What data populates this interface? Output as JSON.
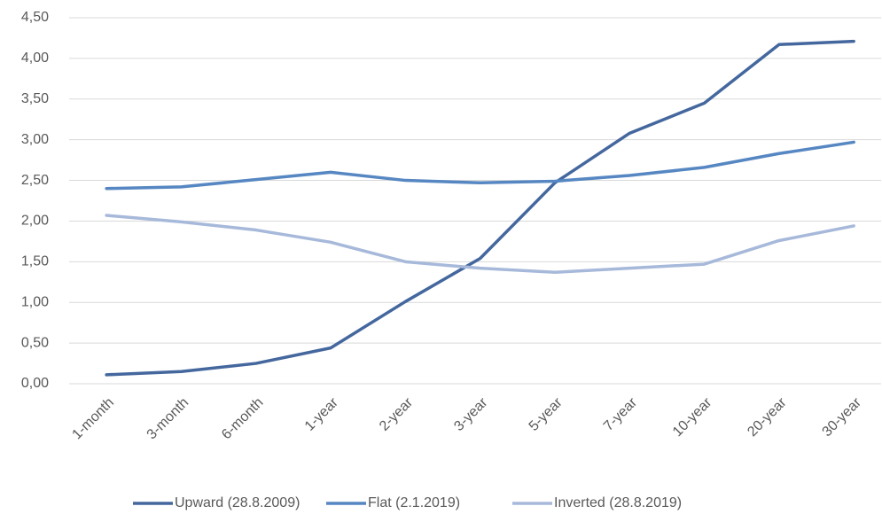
{
  "chart_data": {
    "type": "line",
    "categories": [
      "1-month",
      "3-month",
      "6-month",
      "1-year",
      "2-year",
      "3-year",
      "5-year",
      "7-year",
      "10-year",
      "20-year",
      "30-year"
    ],
    "series": [
      {
        "name": "Upward (28.8.2009)",
        "color": "#44679e",
        "values": [
          0.11,
          0.15,
          0.25,
          0.44,
          1.01,
          1.54,
          2.47,
          3.08,
          3.45,
          4.17,
          4.21
        ]
      },
      {
        "name": "Flat (2.1.2019)",
        "color": "#5687c2",
        "values": [
          2.4,
          2.42,
          2.51,
          2.6,
          2.5,
          2.47,
          2.49,
          2.56,
          2.66,
          2.83,
          2.97
        ]
      },
      {
        "name": "Inverted (28.8.2019)",
        "color": "#a7b9da",
        "values": [
          2.07,
          1.99,
          1.89,
          1.74,
          1.5,
          1.42,
          1.37,
          1.42,
          1.47,
          1.76,
          1.94
        ]
      }
    ],
    "ylim": [
      0,
      4.5
    ],
    "yticks": [
      {
        "value": 0,
        "label": "0,00"
      },
      {
        "value": 0.5,
        "label": "0,50"
      },
      {
        "value": 1,
        "label": "1,00"
      },
      {
        "value": 1.5,
        "label": "1,50"
      },
      {
        "value": 2,
        "label": "2,00"
      },
      {
        "value": 2.5,
        "label": "2,50"
      },
      {
        "value": 3,
        "label": "3,00"
      },
      {
        "value": 3.5,
        "label": "3,50"
      },
      {
        "value": 4,
        "label": "4,00"
      },
      {
        "value": 4.5,
        "label": "4,50"
      }
    ],
    "grid": true,
    "legend": "bottom"
  }
}
